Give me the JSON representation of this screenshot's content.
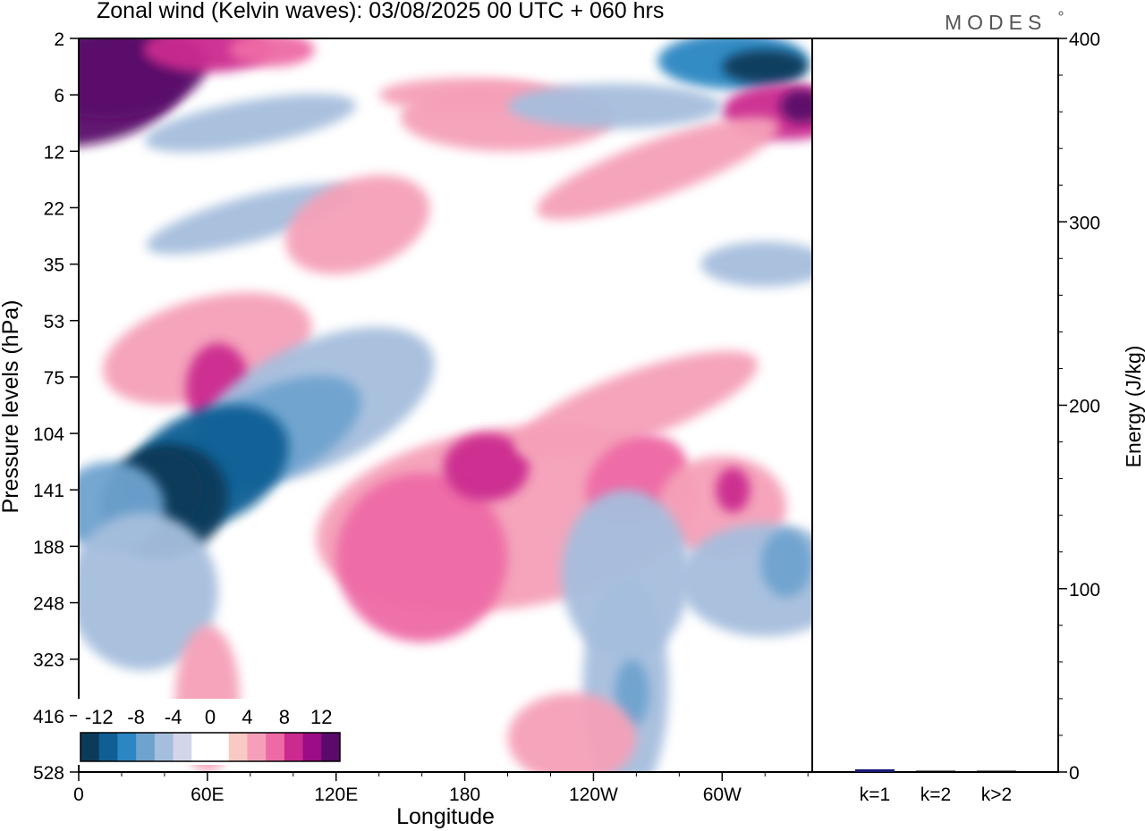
{
  "header": {
    "title": "Zonal wind (Kelvin waves):  03/08/2025  00 UTC  + 060 hrs",
    "brand": "MODES"
  },
  "colors": {
    "neg_scale": [
      "#0e3a5a",
      "#0f5f95",
      "#2c86c2",
      "#6ea3cf",
      "#a6bedd",
      "#d3d6e8"
    ],
    "pos_scale": [
      "#f9c9c3",
      "#f5a0b8",
      "#ee6aa6",
      "#cb2a8f",
      "#9c0c86",
      "#5a0a6b"
    ],
    "white": "#ffffff",
    "bar": "#1a1a7a"
  },
  "chart_data": [
    {
      "type": "heatmap",
      "title": "Zonal wind (Kelvin waves):  03/08/2025  00 UTC  + 060 hrs",
      "xlabel": "Longitude",
      "ylabel": "Pressure levels (hPa)",
      "x_ticks": [
        "0",
        "60E",
        "120E",
        "180",
        "120W",
        "60W"
      ],
      "x_tick_values": [
        0,
        60,
        120,
        180,
        240,
        300
      ],
      "xlim": [
        0,
        342
      ],
      "y_ticks": [
        "2",
        "6",
        "12",
        "22",
        "35",
        "53",
        "75",
        "104",
        "141",
        "188",
        "248",
        "323",
        "416",
        "528"
      ],
      "y_scale": "level-index",
      "grid": false,
      "colorbar": {
        "labels": [
          "-12",
          "-8",
          "-4",
          "0",
          "4",
          "8",
          "12"
        ],
        "label_values": [
          -12,
          -8,
          -4,
          0,
          4,
          8,
          12
        ],
        "placement": "bottom-left"
      },
      "regions": [
        {
          "lon": 0,
          "lev": 0.9,
          "rx": 50,
          "ry": 1.0,
          "v": 11,
          "rot": -8
        },
        {
          "lon": 20,
          "lev": 0.6,
          "rx": 40,
          "ry": 0.8,
          "v": 12,
          "rot": -8
        },
        {
          "lon": 60,
          "lev": 0.2,
          "rx": 30,
          "ry": 0.4,
          "v": 7
        },
        {
          "lon": 90,
          "lev": 0.2,
          "rx": 20,
          "ry": 0.3,
          "v": 5
        },
        {
          "lon": 305,
          "lev": 0.4,
          "rx": 35,
          "ry": 0.5,
          "v": -7
        },
        {
          "lon": 320,
          "lev": 0.5,
          "rx": 20,
          "ry": 0.3,
          "v": -11
        },
        {
          "lon": 330,
          "lev": 1.3,
          "rx": 30,
          "ry": 0.5,
          "v": 7
        },
        {
          "lon": 337,
          "lev": 1.2,
          "rx": 10,
          "ry": 0.3,
          "v": 11
        },
        {
          "lon": 200,
          "lev": 1.4,
          "rx": 50,
          "ry": 0.6,
          "v": 3
        },
        {
          "lon": 180,
          "lev": 1.0,
          "rx": 40,
          "ry": 0.3,
          "v": 2
        },
        {
          "lon": 270,
          "lev": 2.3,
          "rx": 60,
          "ry": 0.5,
          "v": 3,
          "rot": -20
        },
        {
          "lon": 80,
          "lev": 1.5,
          "rx": 50,
          "ry": 0.4,
          "v": -3,
          "rot": -10
        },
        {
          "lon": 250,
          "lev": 1.2,
          "rx": 50,
          "ry": 0.4,
          "v": -3
        },
        {
          "lon": 320,
          "lev": 4.0,
          "rx": 30,
          "ry": 0.4,
          "v": -3
        },
        {
          "lon": 80,
          "lev": 3.2,
          "rx": 50,
          "ry": 0.4,
          "v": -3,
          "rot": -15
        },
        {
          "lon": 130,
          "lev": 3.3,
          "rx": 35,
          "ry": 0.8,
          "v": 3,
          "rot": -20
        },
        {
          "lon": 60,
          "lev": 5.5,
          "rx": 50,
          "ry": 0.9,
          "v": 3,
          "rot": -15
        },
        {
          "lon": 65,
          "lev": 6.2,
          "rx": 15,
          "ry": 0.8,
          "v": 6
        },
        {
          "lon": 110,
          "lev": 6.5,
          "rx": 60,
          "ry": 1.1,
          "v": -3,
          "rot": -25
        },
        {
          "lon": 90,
          "lev": 7.0,
          "rx": 45,
          "ry": 0.8,
          "v": -5,
          "rot": -25
        },
        {
          "lon": 60,
          "lev": 7.6,
          "rx": 40,
          "ry": 1.0,
          "v": -8,
          "rot": -25
        },
        {
          "lon": 40,
          "lev": 8.2,
          "rx": 30,
          "ry": 1.0,
          "v": -10,
          "rot": -20
        },
        {
          "lon": 40,
          "lev": 8.0,
          "rx": 18,
          "ry": 0.7,
          "v": -13,
          "rot": -20
        },
        {
          "lon": 15,
          "lev": 8.3,
          "rx": 25,
          "ry": 0.8,
          "v": -5
        },
        {
          "lon": 30,
          "lev": 9.8,
          "rx": 35,
          "ry": 1.4,
          "v": -2
        },
        {
          "lon": 200,
          "lev": 8.5,
          "rx": 90,
          "ry": 1.6,
          "v": 3,
          "rot": -8
        },
        {
          "lon": 160,
          "lev": 9.2,
          "rx": 40,
          "ry": 1.5,
          "v": 5
        },
        {
          "lon": 190,
          "lev": 7.6,
          "rx": 20,
          "ry": 0.6,
          "v": 7
        },
        {
          "lon": 260,
          "lev": 6.5,
          "rx": 60,
          "ry": 0.6,
          "v": 3,
          "rot": -20
        },
        {
          "lon": 260,
          "lev": 7.8,
          "rx": 25,
          "ry": 0.7,
          "v": 5,
          "rot": -30
        },
        {
          "lon": 300,
          "lev": 8.3,
          "rx": 30,
          "ry": 0.9,
          "v": 3
        },
        {
          "lon": 305,
          "lev": 8.0,
          "rx": 8,
          "ry": 0.4,
          "v": 6
        },
        {
          "lon": 255,
          "lev": 9.5,
          "rx": 30,
          "ry": 1.5,
          "v": -2
        },
        {
          "lon": 320,
          "lev": 9.6,
          "rx": 40,
          "ry": 1.0,
          "v": -2
        },
        {
          "lon": 330,
          "lev": 9.3,
          "rx": 12,
          "ry": 0.6,
          "v": -4
        },
        {
          "lon": 255,
          "lev": 11.5,
          "rx": 20,
          "ry": 2.0,
          "v": -2
        },
        {
          "lon": 258,
          "lev": 11.6,
          "rx": 8,
          "ry": 0.6,
          "v": -4
        },
        {
          "lon": 230,
          "lev": 12.4,
          "rx": 30,
          "ry": 0.8,
          "v": 3
        },
        {
          "lon": 60,
          "lev": 11.7,
          "rx": 15,
          "ry": 1.3,
          "v": 3
        }
      ]
    },
    {
      "type": "bar",
      "ylabel": "Energy (J/kg)",
      "categories": [
        "k=1",
        "k=2",
        "k>2"
      ],
      "values": [
        1.5,
        0.5,
        0.5
      ],
      "ylim": [
        0,
        400
      ],
      "y_ticks": [
        "0",
        "100",
        "200",
        "300",
        "400"
      ],
      "y_tick_values": [
        0,
        100,
        200,
        300,
        400
      ]
    }
  ]
}
